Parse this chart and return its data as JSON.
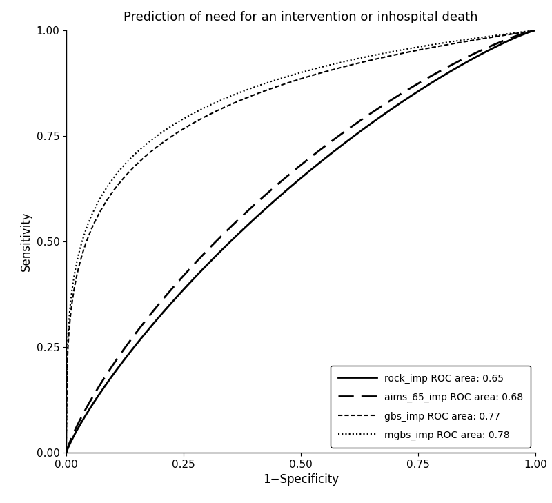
{
  "title": "Prediction of need for an intervention or inhospital death",
  "xlabel": "1−Specificity",
  "ylabel": "Sensitivity",
  "xlim": [
    0.0,
    1.0
  ],
  "ylim": [
    0.0,
    1.0
  ],
  "xticks": [
    0.0,
    0.25,
    0.5,
    0.75,
    1.0
  ],
  "yticks": [
    0.0,
    0.25,
    0.5,
    0.75,
    1.0
  ],
  "legend_loc": "lower right",
  "background_color": "#ffffff",
  "title_fontsize": 13,
  "axis_fontsize": 12,
  "tick_fontsize": 11
}
